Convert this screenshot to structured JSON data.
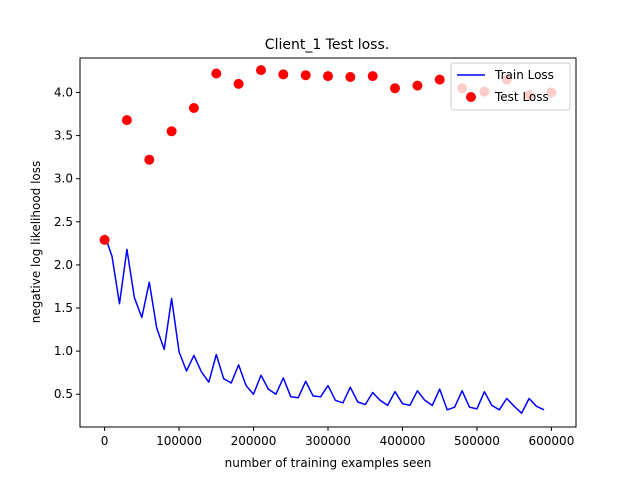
{
  "chart_data": {
    "type": "line",
    "title": "Client_1 Test loss.",
    "xlabel": "number of training examples seen",
    "ylabel": "negative log likelihood loss",
    "xlim": [
      -33000,
      633000
    ],
    "ylim": [
      0.12,
      4.4
    ],
    "x_ticks": [
      0,
      100000,
      200000,
      300000,
      400000,
      500000,
      600000
    ],
    "x_tick_labels": [
      "0",
      "100000",
      "200000",
      "300000",
      "400000",
      "500000",
      "600000"
    ],
    "y_ticks": [
      0.5,
      1.0,
      1.5,
      2.0,
      2.5,
      3.0,
      3.5,
      4.0
    ],
    "y_tick_labels": [
      "0.5",
      "1.0",
      "1.5",
      "2.0",
      "2.5",
      "3.0",
      "3.5",
      "4.0"
    ],
    "grid": false,
    "legend_position": "top-right",
    "series": [
      {
        "name": "Train Loss",
        "type": "line",
        "color": "#0000ff",
        "x": [
          0,
          10000,
          20000,
          30000,
          40000,
          50000,
          60000,
          70000,
          80000,
          90000,
          100000,
          110000,
          120000,
          130000,
          140000,
          150000,
          160000,
          170000,
          180000,
          190000,
          200000,
          210000,
          220000,
          230000,
          240000,
          250000,
          260000,
          270000,
          280000,
          290000,
          300000,
          310000,
          320000,
          330000,
          340000,
          350000,
          360000,
          370000,
          380000,
          390000,
          400000,
          410000,
          420000,
          430000,
          440000,
          450000,
          460000,
          470000,
          480000,
          490000,
          500000,
          510000,
          520000,
          530000,
          540000,
          550000,
          560000,
          570000,
          580000,
          590000
        ],
        "y": [
          2.35,
          2.1,
          1.55,
          2.18,
          1.62,
          1.39,
          1.8,
          1.27,
          1.02,
          1.61,
          0.99,
          0.77,
          0.95,
          0.76,
          0.64,
          0.96,
          0.68,
          0.63,
          0.84,
          0.6,
          0.5,
          0.72,
          0.56,
          0.5,
          0.69,
          0.47,
          0.46,
          0.65,
          0.48,
          0.47,
          0.6,
          0.43,
          0.4,
          0.58,
          0.41,
          0.38,
          0.52,
          0.43,
          0.37,
          0.53,
          0.39,
          0.37,
          0.54,
          0.43,
          0.37,
          0.56,
          0.32,
          0.35,
          0.54,
          0.35,
          0.33,
          0.53,
          0.37,
          0.32,
          0.45,
          0.36,
          0.28,
          0.45,
          0.36,
          0.32
        ]
      },
      {
        "name": "Test Loss",
        "type": "scatter",
        "color": "#ff0000",
        "x": [
          0,
          30000,
          60000,
          90000,
          120000,
          150000,
          180000,
          210000,
          240000,
          270000,
          300000,
          330000,
          360000,
          390000,
          420000,
          450000,
          480000,
          510000,
          540000,
          570000,
          600000
        ],
        "y": [
          2.29,
          3.68,
          3.22,
          3.55,
          3.82,
          4.22,
          4.1,
          4.26,
          4.21,
          4.2,
          4.19,
          4.18,
          4.19,
          4.05,
          4.08,
          4.15,
          4.05,
          4.01,
          4.15,
          3.97,
          4.0
        ]
      }
    ]
  }
}
